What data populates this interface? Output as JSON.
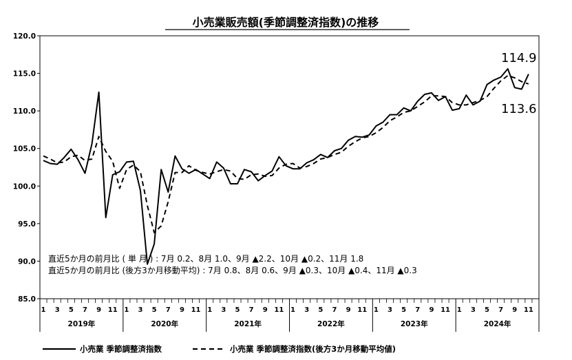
{
  "chart_data": {
    "type": "line",
    "title": "小売業販売額(季節調整済指数)の推移",
    "xlabel": "",
    "ylabel": "",
    "ylim": [
      85.0,
      120.0
    ],
    "yticks": [
      "85.0",
      "90.0",
      "95.0",
      "100.0",
      "105.0",
      "110.0",
      "115.0",
      "120.0"
    ],
    "month_tick_labels": [
      "1",
      "3",
      "5",
      "7",
      "9",
      "11"
    ],
    "years": [
      "2019年",
      "2020年",
      "2021年",
      "2022年",
      "2023年",
      "2024年"
    ],
    "grid": false,
    "legend_position": "bottom",
    "x": [
      "2019-01",
      "2019-02",
      "2019-03",
      "2019-04",
      "2019-05",
      "2019-06",
      "2019-07",
      "2019-08",
      "2019-09",
      "2019-10",
      "2019-11",
      "2019-12",
      "2020-01",
      "2020-02",
      "2020-03",
      "2020-04",
      "2020-05",
      "2020-06",
      "2020-07",
      "2020-08",
      "2020-09",
      "2020-10",
      "2020-11",
      "2020-12",
      "2021-01",
      "2021-02",
      "2021-03",
      "2021-04",
      "2021-05",
      "2021-06",
      "2021-07",
      "2021-08",
      "2021-09",
      "2021-10",
      "2021-11",
      "2021-12",
      "2022-01",
      "2022-02",
      "2022-03",
      "2022-04",
      "2022-05",
      "2022-06",
      "2022-07",
      "2022-08",
      "2022-09",
      "2022-10",
      "2022-11",
      "2022-12",
      "2023-01",
      "2023-02",
      "2023-03",
      "2023-04",
      "2023-05",
      "2023-06",
      "2023-07",
      "2023-08",
      "2023-09",
      "2023-10",
      "2023-11",
      "2023-12",
      "2024-01",
      "2024-02",
      "2024-03",
      "2024-04",
      "2024-05",
      "2024-06",
      "2024-07",
      "2024-08",
      "2024-09",
      "2024-10",
      "2024-11"
    ],
    "series": [
      {
        "name": "小売業 季節調整済指数",
        "style": "solid",
        "values": [
          103.4,
          103.0,
          102.9,
          103.8,
          104.9,
          103.5,
          101.7,
          105.6,
          112.5,
          95.8,
          101.5,
          101.9,
          103.2,
          103.3,
          99.4,
          89.6,
          92.3,
          102.2,
          99.2,
          104.0,
          102.3,
          101.7,
          102.2,
          101.6,
          101.0,
          103.2,
          102.4,
          100.3,
          100.3,
          102.2,
          101.9,
          100.7,
          101.4,
          102.0,
          103.9,
          102.7,
          102.3,
          102.3,
          103.1,
          103.5,
          104.2,
          103.8,
          104.7,
          105.0,
          106.1,
          106.6,
          106.5,
          106.8,
          108.0,
          108.5,
          109.5,
          109.5,
          110.4,
          110.0,
          111.3,
          112.2,
          112.4,
          111.4,
          111.9,
          110.1,
          110.3,
          112.1,
          110.8,
          111.3,
          113.5,
          114.1,
          114.5,
          115.6,
          113.1,
          112.9,
          114.9
        ]
      },
      {
        "name": "小売業 季節調整済指数(後方3か月移動平均値)",
        "style": "dashed",
        "values": [
          104.0,
          103.6,
          103.1,
          103.2,
          103.9,
          104.1,
          103.4,
          103.6,
          106.6,
          104.6,
          103.3,
          99.7,
          102.2,
          102.8,
          101.9,
          97.4,
          93.8,
          94.7,
          97.9,
          101.8,
          101.8,
          102.7,
          102.1,
          101.8,
          101.6,
          101.9,
          102.2,
          102.0,
          101.0,
          100.9,
          101.5,
          101.6,
          101.3,
          101.4,
          102.4,
          102.9,
          103.0,
          102.4,
          102.6,
          103.0,
          103.6,
          103.8,
          104.2,
          104.5,
          105.3,
          105.9,
          106.4,
          106.6,
          107.1,
          107.8,
          108.7,
          109.2,
          109.8,
          110.0,
          110.6,
          111.2,
          112.0,
          112.0,
          111.9,
          111.1,
          110.8,
          110.8,
          111.1,
          111.4,
          111.9,
          113.0,
          114.0,
          114.7,
          114.4,
          113.9,
          113.6
        ]
      }
    ],
    "end_labels": [
      "114.9",
      "113.6"
    ],
    "notes": [
      "直近5か月の前月比 (  単   月  )        : 7月 0.2、8月 1.0、9月 ▲2.2、10月 ▲0.2、11月 1.8",
      "直近5か月の前月比 (後方3か月移動平均) : 7月 0.8、8月 0.6、9月 ▲0.3、10月 ▲0.4、11月 ▲0.3"
    ]
  }
}
